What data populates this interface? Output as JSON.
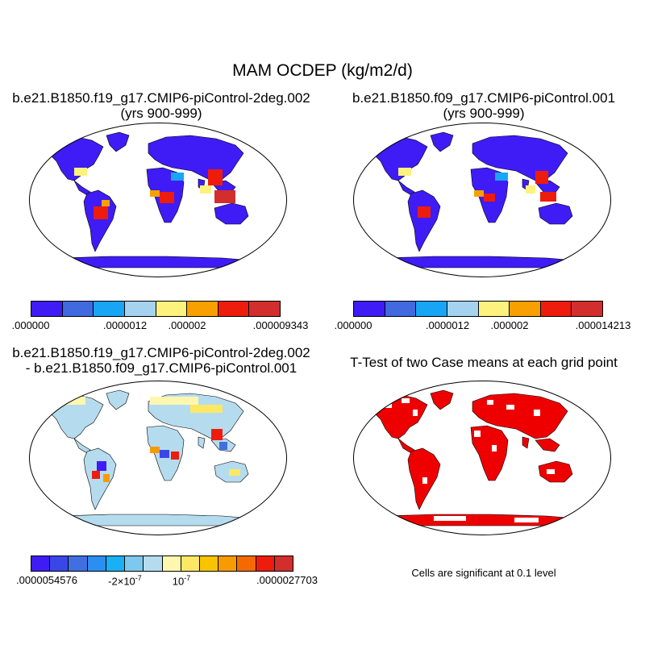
{
  "title": "MAM OCDEP (kg/m2/d)",
  "panels": {
    "top_left": {
      "title_line1": "b.e21.B1850.f19_g17.CMIP6-piControl-2deg.002",
      "title_line2": "(yrs 900-999)",
      "colorbar": {
        "colors": [
          "#3f1cf5",
          "#4169e0",
          "#19a5f5",
          "#a5d3ef",
          "#fdf27d",
          "#f8a000",
          "#ee1c0c",
          "#d22e2e"
        ],
        "labels": [
          ".000000",
          ".0000012",
          ".000002",
          ".000009343"
        ]
      }
    },
    "top_right": {
      "title_line1": "b.e21.B1850.f09_g17.CMIP6-piControl.001",
      "title_line2": "(yrs 900-999)",
      "colorbar": {
        "colors": [
          "#3f1cf5",
          "#4169e0",
          "#19a5f5",
          "#a5d3ef",
          "#fdf27d",
          "#f8a000",
          "#ee1c0c",
          "#d22e2e"
        ],
        "labels": [
          ".000000",
          ".0000012",
          ".000002",
          ".000014213"
        ]
      }
    },
    "bottom_left": {
      "title_line1": "b.e21.B1850.f19_g17.CMIP6-piControl-2deg.002",
      "title_line2": "- b.e21.B1850.f09_g17.CMIP6-piControl.001",
      "colorbar": {
        "colors": [
          "#3f1cf5",
          "#3a47e8",
          "#3f6fe0",
          "#2a8ff0",
          "#19b0f5",
          "#7dc8ee",
          "#b5dcee",
          "#fff7b0",
          "#fde765",
          "#f8c400",
          "#f89a00",
          "#f46a00",
          "#ee1c0c",
          "#d22e2e"
        ],
        "label_left": ".0000054576",
        "label_mid1_base": "-2×10",
        "label_mid1_exp": "-7",
        "label_mid2_base": "10",
        "label_mid2_exp": "-7",
        "label_right": ".0000027703"
      }
    },
    "bottom_right": {
      "title": "T-Test of two Case means at each grid point",
      "note": "Cells are significant at 0.1 level",
      "fill_color": "#ee0000"
    }
  },
  "land_color_lowest": "#3f1cf5"
}
